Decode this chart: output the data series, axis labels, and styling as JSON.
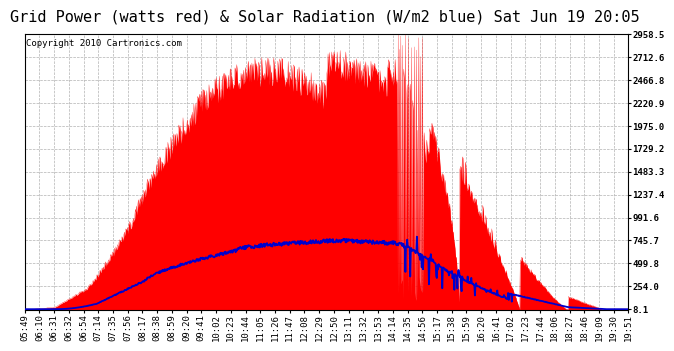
{
  "title": "Grid Power (watts red) & Solar Radiation (W/m2 blue) Sat Jun 19 20:05",
  "copyright": "Copyright 2010 Cartronics.com",
  "background_color": "#ffffff",
  "plot_bg_color": "#ffffff",
  "red_color": "#ff0000",
  "blue_color": "#0000cc",
  "grid_color": "#aaaaaa",
  "yticks": [
    8.1,
    254.0,
    499.8,
    745.7,
    991.6,
    1237.4,
    1483.3,
    1729.2,
    1975.0,
    2220.9,
    2466.8,
    2712.6,
    2958.5
  ],
  "ymin": 0,
  "ymax": 2958.5,
  "xtick_labels": [
    "05:49",
    "06:10",
    "06:31",
    "06:32",
    "06:54",
    "07:14",
    "07:35",
    "07:56",
    "08:17",
    "08:38",
    "08:59",
    "09:20",
    "09:41",
    "10:02",
    "10:23",
    "10:44",
    "11:05",
    "11:26",
    "11:47",
    "12:08",
    "12:29",
    "12:50",
    "13:11",
    "13:32",
    "13:53",
    "14:14",
    "14:35",
    "14:56",
    "15:17",
    "15:38",
    "15:59",
    "16:20",
    "16:41",
    "17:02",
    "17:23",
    "17:44",
    "18:06",
    "18:27",
    "18:46",
    "19:09",
    "19:30",
    "19:51"
  ],
  "title_fontsize": 11,
  "tick_fontsize": 6.5,
  "copyright_fontsize": 6.5
}
